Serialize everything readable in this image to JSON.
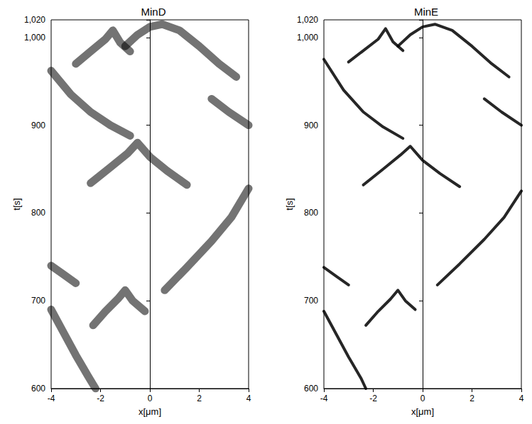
{
  "chart_data": [
    {
      "type": "line",
      "title": "MinD",
      "x_label": "x[μm]",
      "y_label": "t[s]",
      "xlim": [
        -4,
        4
      ],
      "xticks": [
        -4,
        -2,
        0,
        2,
        4
      ],
      "ylim": [
        600,
        1020
      ],
      "yticks": [
        600,
        700,
        800,
        900,
        1000
      ],
      "color": "#000000",
      "line_style": "solid",
      "series": [
        {
          "x": [
            -4,
            -3.5,
            -3,
            -2.5,
            -2.2
          ],
          "values": [
            690,
            664,
            638,
            614,
            600
          ]
        },
        {
          "x": [
            -2.3,
            -1.8,
            -1.3,
            -1.0,
            -0.7,
            -0.2
          ],
          "values": [
            672,
            688,
            702,
            712,
            700,
            688
          ]
        },
        {
          "x": [
            0.6,
            1.5,
            2.5,
            3.3,
            4
          ],
          "values": [
            712,
            738,
            768,
            795,
            828
          ]
        },
        {
          "x": [
            -4,
            -3.5,
            -3.0
          ],
          "values": [
            740,
            730,
            720
          ]
        },
        {
          "x": [
            -2.4,
            -1.6,
            -0.9,
            -0.5,
            0.0,
            0.7,
            1.5
          ],
          "values": [
            834,
            852,
            868,
            880,
            864,
            848,
            832
          ]
        },
        {
          "x": [
            -4,
            -3.2,
            -2.4,
            -1.6,
            -0.8
          ],
          "values": [
            962,
            935,
            915,
            900,
            888
          ]
        },
        {
          "x": [
            -3.0,
            -2.4,
            -1.8,
            -1.5,
            -1.2,
            -0.8
          ],
          "values": [
            970,
            984,
            998,
            1008,
            994,
            984
          ]
        },
        {
          "x": [
            -1.0,
            -0.5,
            0.0,
            0.5,
            1.2,
            2.0,
            2.8,
            3.5
          ],
          "values": [
            990,
            1003,
            1012,
            1015,
            1008,
            990,
            970,
            955
          ]
        },
        {
          "x": [
            2.5,
            3.2,
            4
          ],
          "values": [
            930,
            915,
            900
          ]
        }
      ]
    },
    {
      "type": "line",
      "title": "MinE",
      "x_label": "x[μm]",
      "y_label": "t[s]",
      "xlim": [
        -4,
        4
      ],
      "xticks": [
        -4,
        -2,
        0,
        2,
        4
      ],
      "ylim": [
        600,
        1020
      ],
      "yticks": [
        600,
        700,
        800,
        900,
        1000
      ],
      "color": "#000000",
      "line_style": "solid",
      "series": [
        {
          "x": [
            -4,
            -3.5,
            -3,
            -2.5,
            -2.3
          ],
          "values": [
            688,
            662,
            636,
            612,
            600
          ]
        },
        {
          "x": [
            -2.3,
            -1.8,
            -1.3,
            -1.0,
            -0.7,
            -0.3
          ],
          "values": [
            672,
            688,
            702,
            712,
            700,
            690
          ]
        },
        {
          "x": [
            0.6,
            1.5,
            2.5,
            3.3,
            4
          ],
          "values": [
            718,
            742,
            770,
            795,
            825
          ]
        },
        {
          "x": [
            -4,
            -3.5,
            -3.0
          ],
          "values": [
            738,
            728,
            718
          ]
        },
        {
          "x": [
            -2.4,
            -1.6,
            -0.9,
            -0.5,
            0.0,
            0.7,
            1.5
          ],
          "values": [
            832,
            850,
            866,
            876,
            860,
            845,
            830
          ]
        },
        {
          "x": [
            -4,
            -3.2,
            -2.4,
            -1.6,
            -0.8
          ],
          "values": [
            975,
            940,
            915,
            898,
            885
          ]
        },
        {
          "x": [
            -3.0,
            -2.4,
            -1.8,
            -1.5,
            -1.2,
            -0.8
          ],
          "values": [
            972,
            985,
            998,
            1010,
            995,
            985
          ]
        },
        {
          "x": [
            -1.0,
            -0.5,
            0.0,
            0.5,
            1.2,
            2.0,
            2.8,
            3.5
          ],
          "values": [
            990,
            1003,
            1012,
            1015,
            1008,
            990,
            970,
            955
          ]
        },
        {
          "x": [
            2.5,
            3.2,
            4
          ],
          "values": [
            930,
            915,
            900
          ]
        }
      ]
    }
  ]
}
